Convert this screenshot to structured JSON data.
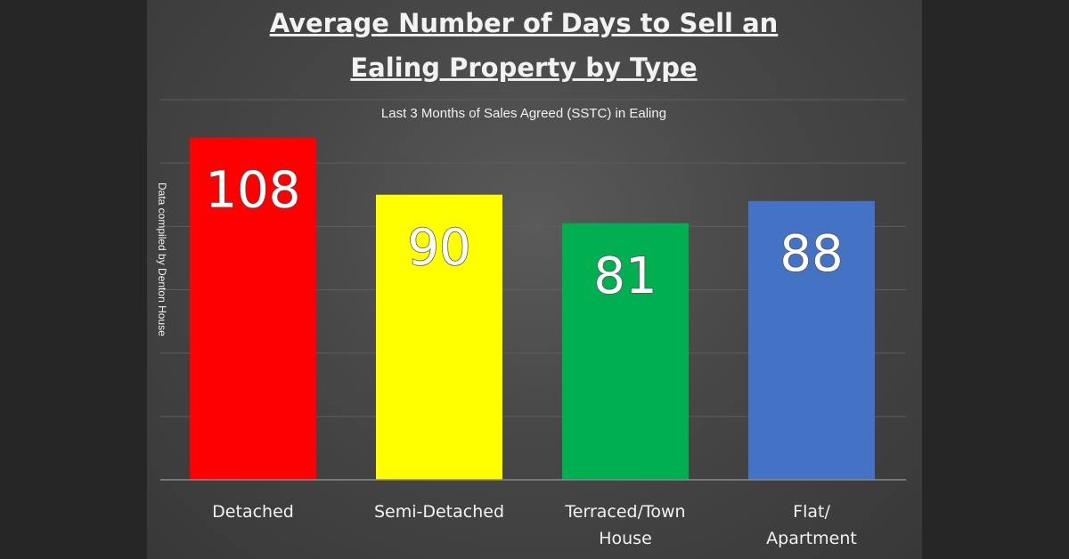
{
  "chart_data": {
    "type": "bar",
    "title_lines": [
      "Average Number of Days to Sell an",
      "Ealing Property by Type"
    ],
    "subtitle": "Last 3 Months of Sales Agreed (SSTC) in Ealing",
    "side_note": "Data compiled by Denton House",
    "categories": [
      [
        "Detached"
      ],
      [
        "Semi-Detached"
      ],
      [
        "Terraced/Town",
        "House"
      ],
      [
        "Flat/",
        "Apartment"
      ]
    ],
    "values": [
      108,
      90,
      81,
      88
    ],
    "colors": [
      "#ff0000",
      "#ffff00",
      "#00b050",
      "#4472c4"
    ],
    "xlabel": "",
    "ylabel": "",
    "ylim": [
      0,
      120
    ],
    "ytick_step": 20,
    "grid": true,
    "legend": "none"
  }
}
